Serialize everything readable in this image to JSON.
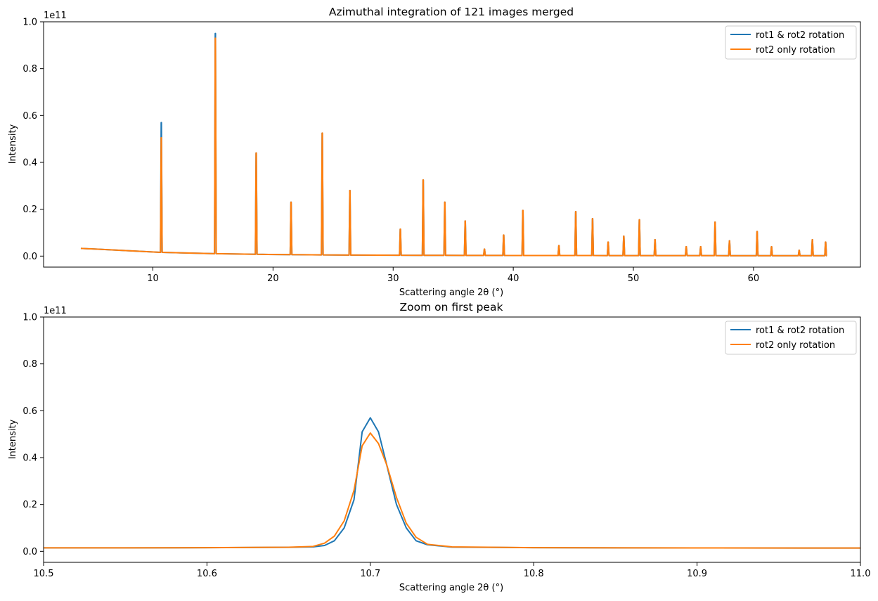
{
  "figure": {
    "colors": {
      "series1": "#1f77b4",
      "series2": "#ff7f0e",
      "axes": "#000000",
      "legend_border": "#cccccc"
    }
  },
  "chart_data": [
    {
      "type": "line",
      "title": "Azimuthal integration of 121 images merged",
      "xlabel": "Scattering angle 2θ (°)",
      "ylabel": "Intensity",
      "y_offset_label": "1e11",
      "xlim": [
        0.9,
        68.9
      ],
      "ylim": [
        -0.047,
        1.0
      ],
      "y_unit_multiplier": 100000000000.0,
      "xticks": [
        10,
        20,
        30,
        40,
        50,
        60
      ],
      "xtick_labels": [
        "10",
        "20",
        "30",
        "40",
        "50",
        "60"
      ],
      "yticks": [
        0.0,
        0.2,
        0.4,
        0.6,
        0.8,
        1.0
      ],
      "ytick_labels": [
        "0.0",
        "0.2",
        "0.4",
        "0.6",
        "0.8",
        "1.0"
      ],
      "legend": {
        "placement": "top-right",
        "entries": [
          "rot1 & rot2 rotation",
          "rot2 only rotation"
        ]
      },
      "baseline": {
        "x": [
          4.0,
          6,
          8,
          10,
          12,
          15,
          18,
          21,
          25,
          30,
          35,
          40,
          45,
          50,
          55,
          60,
          66.1
        ],
        "y": [
          0.033,
          0.027,
          0.022,
          0.017,
          0.014,
          0.0105,
          0.008,
          0.0063,
          0.0048,
          0.0037,
          0.0031,
          0.0027,
          0.0024,
          0.0022,
          0.002,
          0.0019,
          0.0018
        ]
      },
      "series": [
        {
          "name": "rot1 & rot2 rotation",
          "peaks": [
            [
              10.7,
              0.57
            ],
            [
              15.2,
              0.95
            ],
            [
              18.6,
              0.44
            ],
            [
              21.5,
              0.23
            ],
            [
              24.1,
              0.525
            ],
            [
              26.4,
              0.28
            ],
            [
              30.6,
              0.115
            ],
            [
              32.5,
              0.325
            ],
            [
              34.3,
              0.23
            ],
            [
              36.0,
              0.15
            ],
            [
              37.6,
              0.03
            ],
            [
              39.2,
              0.09
            ],
            [
              40.8,
              0.195
            ],
            [
              43.8,
              0.045
            ],
            [
              45.2,
              0.19
            ],
            [
              46.6,
              0.16
            ],
            [
              47.9,
              0.06
            ],
            [
              49.2,
              0.085
            ],
            [
              50.5,
              0.155
            ],
            [
              51.8,
              0.07
            ],
            [
              54.4,
              0.04
            ],
            [
              55.6,
              0.04
            ],
            [
              56.8,
              0.145
            ],
            [
              58.0,
              0.065
            ],
            [
              60.3,
              0.105
            ],
            [
              61.5,
              0.04
            ],
            [
              63.8,
              0.025
            ],
            [
              64.9,
              0.07
            ],
            [
              66.0,
              0.06
            ]
          ]
        },
        {
          "name": "rot2 only rotation",
          "peaks": [
            [
              10.7,
              0.505
            ],
            [
              15.2,
              0.93
            ],
            [
              18.6,
              0.44
            ],
            [
              21.5,
              0.23
            ],
            [
              24.1,
              0.525
            ],
            [
              26.4,
              0.28
            ],
            [
              30.6,
              0.115
            ],
            [
              32.5,
              0.325
            ],
            [
              34.3,
              0.23
            ],
            [
              36.0,
              0.15
            ],
            [
              37.6,
              0.03
            ],
            [
              39.2,
              0.09
            ],
            [
              40.8,
              0.195
            ],
            [
              43.8,
              0.045
            ],
            [
              45.2,
              0.19
            ],
            [
              46.6,
              0.16
            ],
            [
              47.9,
              0.06
            ],
            [
              49.2,
              0.085
            ],
            [
              50.5,
              0.155
            ],
            [
              51.8,
              0.07
            ],
            [
              54.4,
              0.04
            ],
            [
              55.6,
              0.04
            ],
            [
              56.8,
              0.145
            ],
            [
              58.0,
              0.065
            ],
            [
              60.3,
              0.105
            ],
            [
              61.5,
              0.04
            ],
            [
              63.8,
              0.025
            ],
            [
              64.9,
              0.07
            ],
            [
              66.0,
              0.06
            ]
          ]
        }
      ]
    },
    {
      "type": "line",
      "title": "Zoom on first peak",
      "xlabel": "Scattering angle 2θ (°)",
      "ylabel": "Intensity",
      "y_offset_label": "1e11",
      "xlim": [
        10.5,
        11.0
      ],
      "ylim": [
        -0.047,
        1.0
      ],
      "y_unit_multiplier": 100000000000.0,
      "xticks": [
        10.5,
        10.6,
        10.7,
        10.8,
        10.9,
        11.0
      ],
      "xtick_labels": [
        "10.5",
        "10.6",
        "10.7",
        "10.8",
        "10.9",
        "11.0"
      ],
      "yticks": [
        0.0,
        0.2,
        0.4,
        0.6,
        0.8,
        1.0
      ],
      "ytick_labels": [
        "0.0",
        "0.2",
        "0.4",
        "0.6",
        "0.8",
        "1.0"
      ],
      "legend": {
        "placement": "top-right",
        "entries": [
          "rot1 & rot2 rotation",
          "rot2 only rotation"
        ]
      },
      "series": [
        {
          "name": "rot1 & rot2 rotation",
          "x": [
            10.5,
            10.55,
            10.6,
            10.65,
            10.665,
            10.672,
            10.678,
            10.684,
            10.69,
            10.695,
            10.7,
            10.705,
            10.71,
            10.716,
            10.722,
            10.728,
            10.735,
            10.75,
            10.8,
            10.9,
            11.0
          ],
          "y": [
            0.015,
            0.015,
            0.0155,
            0.017,
            0.019,
            0.025,
            0.045,
            0.1,
            0.22,
            0.51,
            0.57,
            0.51,
            0.37,
            0.2,
            0.1,
            0.045,
            0.028,
            0.018,
            0.0155,
            0.0145,
            0.014
          ]
        },
        {
          "name": "rot2 only rotation",
          "x": [
            10.5,
            10.55,
            10.6,
            10.65,
            10.665,
            10.672,
            10.678,
            10.684,
            10.69,
            10.695,
            10.7,
            10.705,
            10.71,
            10.716,
            10.722,
            10.728,
            10.735,
            10.75,
            10.8,
            10.9,
            11.0
          ],
          "y": [
            0.015,
            0.015,
            0.0155,
            0.0175,
            0.021,
            0.035,
            0.065,
            0.13,
            0.26,
            0.45,
            0.505,
            0.46,
            0.37,
            0.23,
            0.12,
            0.06,
            0.03,
            0.019,
            0.0155,
            0.0145,
            0.014
          ]
        }
      ]
    }
  ]
}
